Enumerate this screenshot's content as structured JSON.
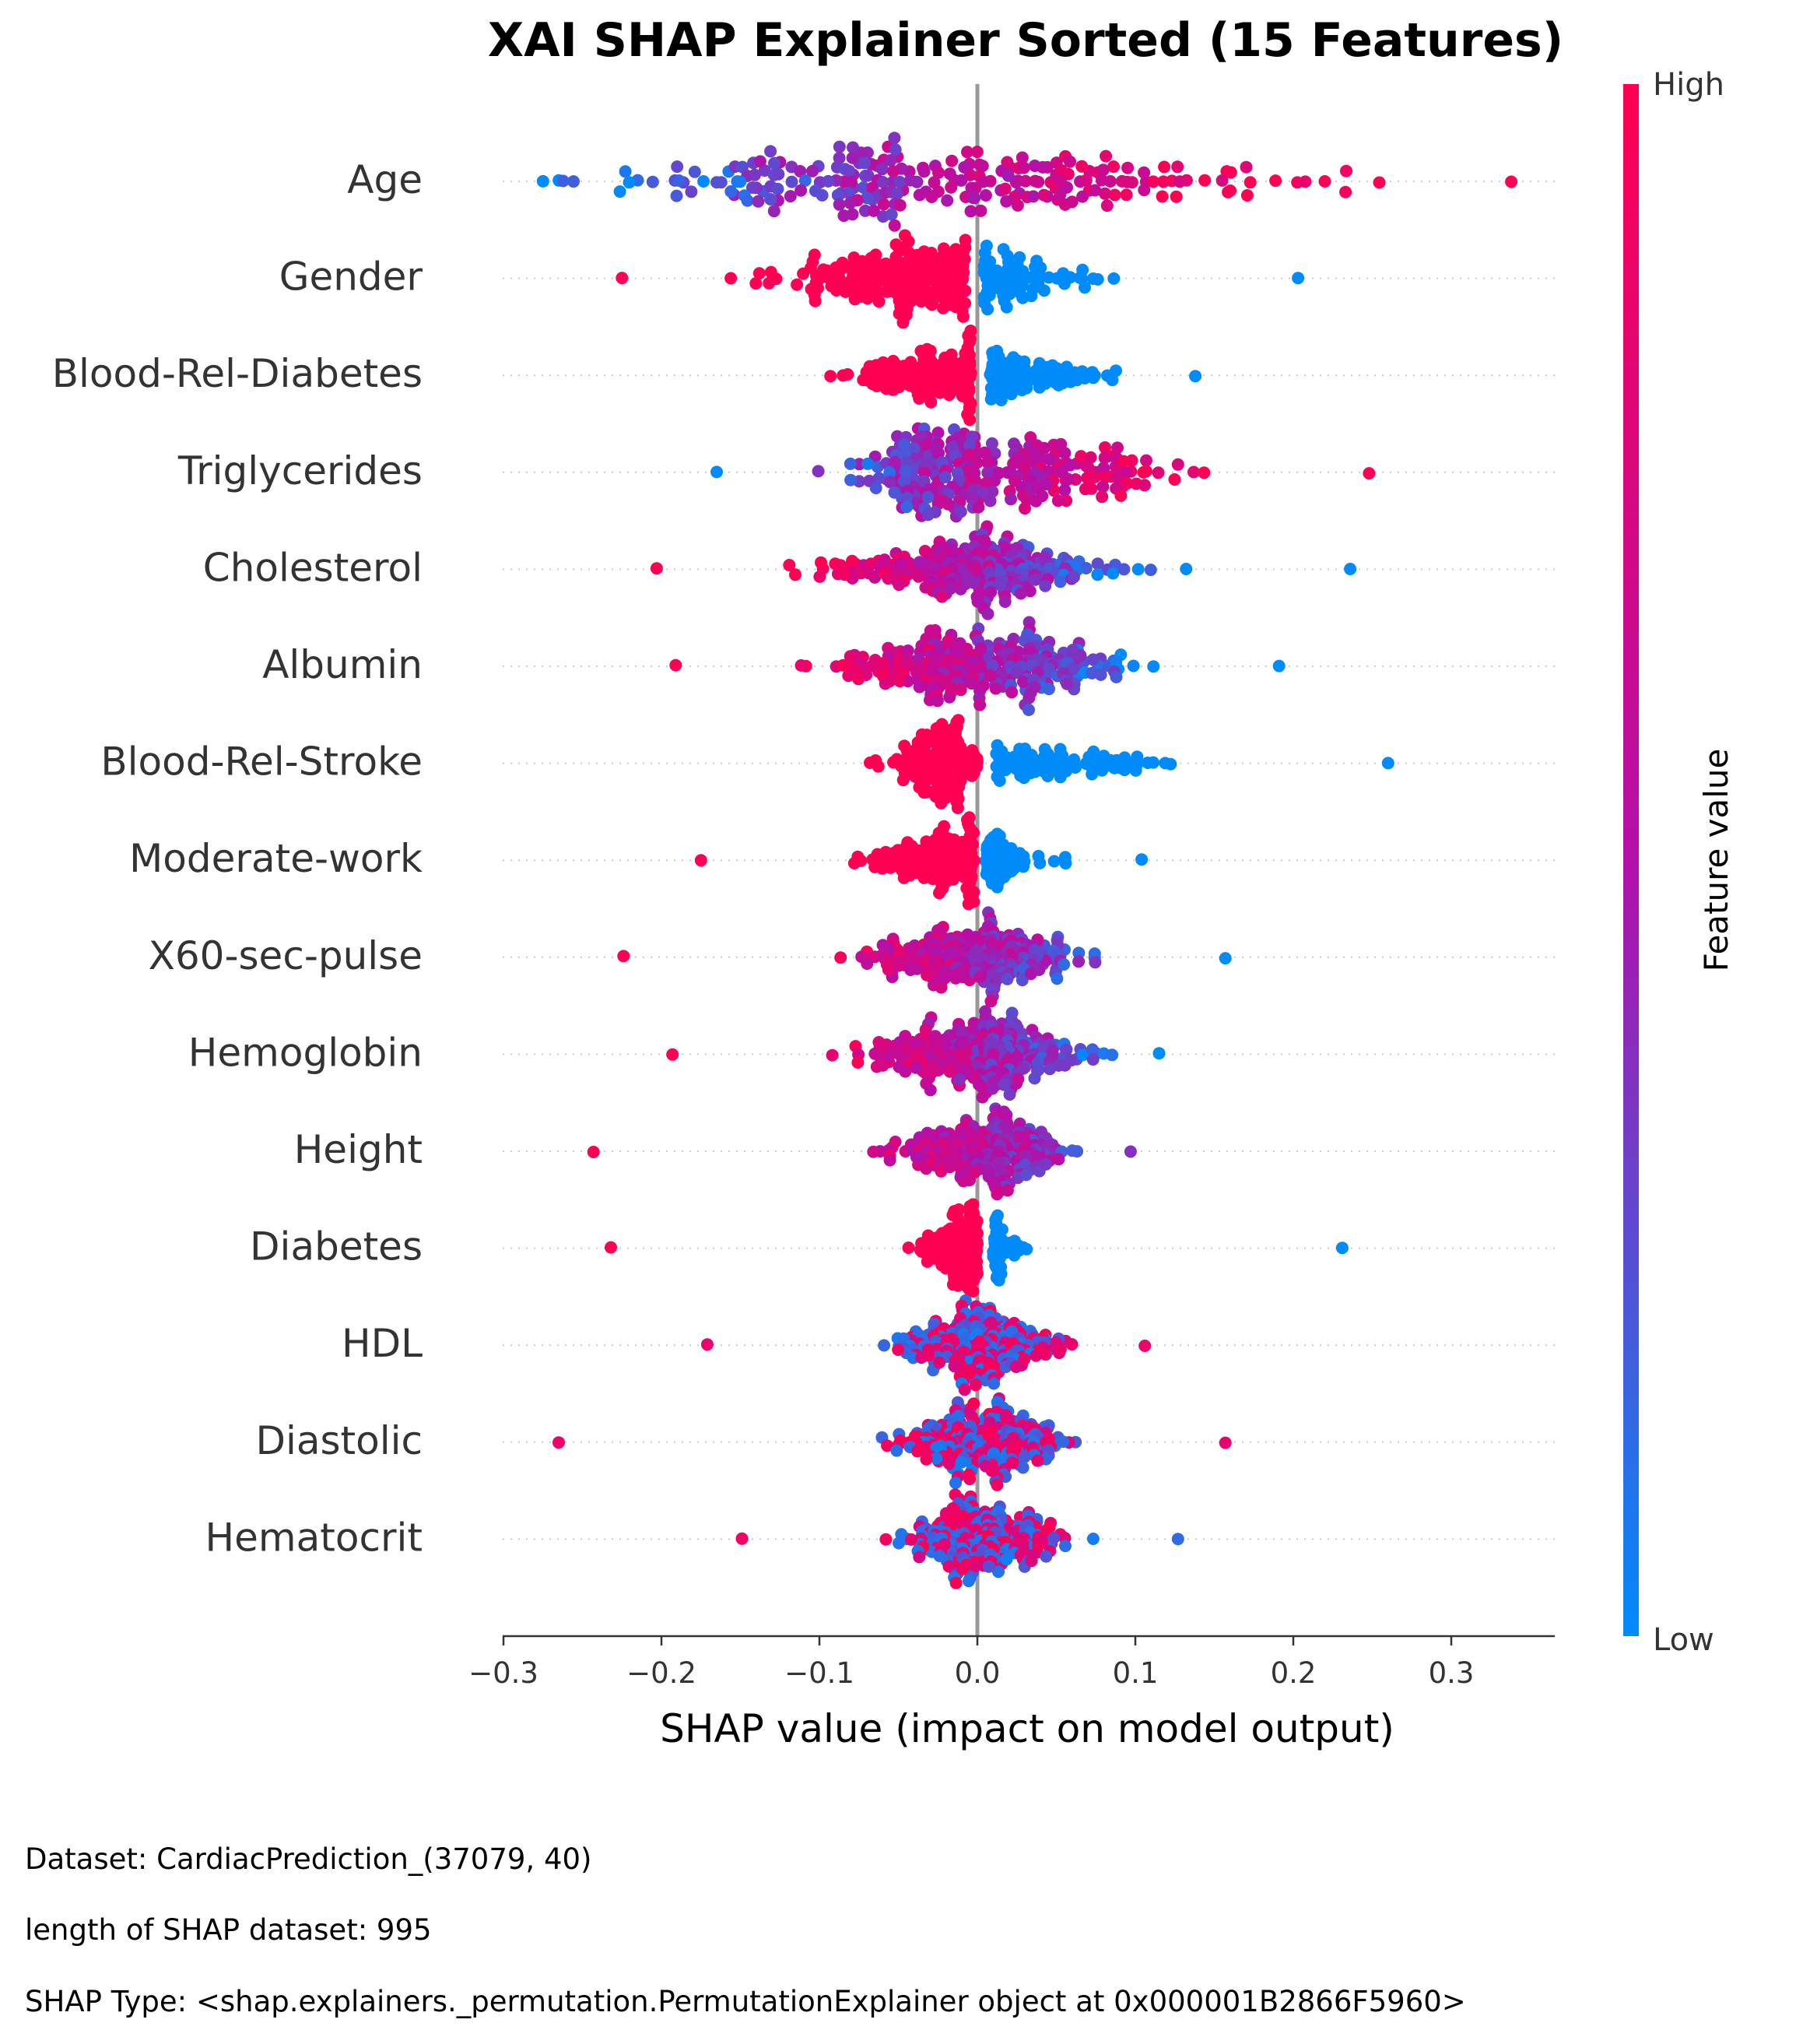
{
  "chart_data": {
    "type": "scatter",
    "subtype": "shap-beeswarm",
    "title": "XAI SHAP Explainer Sorted  (15 Features)",
    "xlabel": "SHAP value (impact on model output)",
    "xlim": [
      -0.3,
      0.365
    ],
    "xticks": [
      {
        "value": -0.3,
        "label": "−0.3"
      },
      {
        "value": -0.2,
        "label": "−0.2"
      },
      {
        "value": -0.1,
        "label": "−0.1"
      },
      {
        "value": 0.0,
        "label": "0.0"
      },
      {
        "value": 0.1,
        "label": "0.1"
      },
      {
        "value": 0.2,
        "label": "0.2"
      },
      {
        "value": 0.3,
        "label": "0.3"
      }
    ],
    "colorbar": {
      "label": "Feature value",
      "high_label": "High",
      "low_label": "Low",
      "high_color": "#ff0052",
      "mid_color": "#b40fa8",
      "low_color": "#008bfb"
    },
    "features": [
      {
        "name": "Age",
        "min": -0.275,
        "max": 0.338,
        "center": -0.04,
        "spread": 0.085,
        "skew": 1.4,
        "color": "pos-high"
      },
      {
        "name": "Gender",
        "min": -0.225,
        "max": 0.203,
        "center": -0.03,
        "spread": 0.05,
        "skew": 0.9,
        "color": "split-neg-high",
        "gap": [
          -0.007,
          0.004
        ]
      },
      {
        "name": "Blood-Rel-Diabetes",
        "min": -0.093,
        "max": 0.138,
        "center": -0.015,
        "spread": 0.03,
        "skew": 1.5,
        "color": "split-neg-high",
        "gap": [
          -0.004,
          0.008
        ]
      },
      {
        "name": "Triglycerides",
        "min": -0.165,
        "max": 0.248,
        "center": 0.0,
        "spread": 0.04,
        "skew": 1.6,
        "color": "pos-high"
      },
      {
        "name": "Cholesterol",
        "min": -0.203,
        "max": 0.236,
        "center": 0.0,
        "spread": 0.045,
        "skew": 1.0,
        "color": "neg-high"
      },
      {
        "name": "Albumin",
        "min": -0.191,
        "max": 0.191,
        "center": 0.0,
        "spread": 0.045,
        "skew": 1.0,
        "color": "neg-high"
      },
      {
        "name": "Blood-Rel-Stroke",
        "min": -0.068,
        "max": 0.26,
        "center": -0.01,
        "spread": 0.02,
        "skew": 3.0,
        "color": "split-neg-high",
        "gap": [
          0.0,
          0.012
        ]
      },
      {
        "name": "Moderate-work",
        "min": -0.175,
        "max": 0.104,
        "center": -0.01,
        "spread": 0.03,
        "skew": 0.8,
        "color": "split-neg-high",
        "gap": [
          -0.002,
          0.005
        ]
      },
      {
        "name": "X60-sec-pulse",
        "min": -0.224,
        "max": 0.157,
        "center": 0.0,
        "spread": 0.035,
        "skew": 1.0,
        "color": "neg-high"
      },
      {
        "name": "Hemoglobin",
        "min": -0.193,
        "max": 0.115,
        "center": 0.0,
        "spread": 0.035,
        "skew": 0.9,
        "color": "neg-high"
      },
      {
        "name": "Height",
        "min": -0.243,
        "max": 0.097,
        "center": 0.01,
        "spread": 0.03,
        "skew": 0.7,
        "color": "neg-high"
      },
      {
        "name": "Diabetes",
        "min": -0.232,
        "max": 0.231,
        "center": -0.005,
        "spread": 0.015,
        "skew": 1.0,
        "color": "split-neg-high",
        "gap": [
          0.0,
          0.01
        ]
      },
      {
        "name": "HDL",
        "min": -0.171,
        "max": 0.106,
        "center": 0.005,
        "spread": 0.025,
        "skew": 0.9,
        "color": "mixed"
      },
      {
        "name": "Diastolic",
        "min": -0.265,
        "max": 0.157,
        "center": 0.005,
        "spread": 0.025,
        "skew": 0.9,
        "color": "mixed"
      },
      {
        "name": "Hematocrit",
        "min": -0.149,
        "max": 0.127,
        "center": 0.005,
        "spread": 0.025,
        "skew": 1.0,
        "color": "mixed"
      }
    ]
  },
  "footer": {
    "dataset": "Dataset:  CardiacPrediction_(37079, 40)",
    "length": "length of SHAP dataset: 995",
    "shap_type": "SHAP Type: <shap.explainers._permutation.PermutationExplainer object at 0x000001B2866F5960>"
  }
}
